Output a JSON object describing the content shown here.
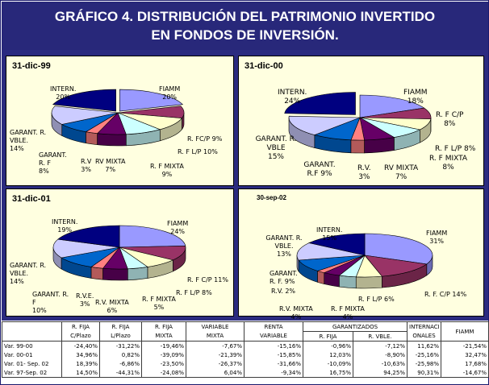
{
  "title": {
    "line1": "GRÁFICO 4. DISTRIBUCIÓN DEL PATRIMONIO INVERTIDO",
    "line2": "EN FONDOS DE INVERSIÓN."
  },
  "colors": {
    "FIAMM": "#9999ff",
    "R. F C/P": "#993366",
    "R. F L/P": "#ffffcc",
    "R. F MIXTA": "#ccffff",
    "RV MIXTA": "#660066",
    "R.V.": "#ff8080",
    "GARANT. R.F": "#0066cc",
    "GARANT. R. VBLE.": "#ccccff",
    "INTERN.": "#000080"
  },
  "chart_data": [
    {
      "type": "pie",
      "title": "31-dic-99",
      "categories": [
        "FIAMM",
        "R. FC/P",
        "R. F L/P",
        "R. F MIXTA",
        "RV MIXTA",
        "R.V",
        "GARANT. R. F",
        "GARANT. R. VBLE.",
        "INTERN."
      ],
      "values": [
        20,
        9,
        10,
        9,
        7,
        3,
        8,
        14,
        20
      ],
      "labels": [
        {
          "name": "FIAMM",
          "pct": "20%"
        },
        {
          "name": "R. FC/P 9%"
        },
        {
          "name": "R. F L/P 10%"
        },
        {
          "name": "R. F MIXTA",
          "pct": "9%"
        },
        {
          "name": "RV MIXTA",
          "pct": "7%"
        },
        {
          "name": "R.V",
          "pct": "3%"
        },
        {
          "name": "GARANT. R. F",
          "pct": "8%"
        },
        {
          "name": "GARANT. R. VBLE.",
          "pct": "14%"
        },
        {
          "name": "INTERN.",
          "pct": "20%"
        }
      ]
    },
    {
      "type": "pie",
      "title": "31-dic-00",
      "categories": [
        "FIAMM",
        "R. F C/P",
        "R. F L/P",
        "R. F MIXTA",
        "RV MIXTA",
        "R.V.",
        "GARANT. R.F",
        "GARANT. R. VBLE",
        "INTERN."
      ],
      "values": [
        18,
        8,
        8,
        8,
        7,
        3,
        9,
        15,
        24
      ],
      "labels": [
        {
          "name": "FIAMM",
          "pct": "18%"
        },
        {
          "name": "R. F C/P",
          "pct": "8%"
        },
        {
          "name": "R. F L/P 8%"
        },
        {
          "name": "R. F MIXTA",
          "pct": "8%"
        },
        {
          "name": "RV MIXTA",
          "pct": "7%"
        },
        {
          "name": "R.V.",
          "pct": "3%"
        },
        {
          "name": "GARANT. R.F 9%"
        },
        {
          "name": "GARANT. R. VBLE",
          "pct": "15%"
        },
        {
          "name": "INTERN.",
          "pct": "24%"
        }
      ]
    },
    {
      "type": "pie",
      "title": "31-dic-01",
      "categories": [
        "FIAMM",
        "R. F C/P",
        "R. F L/P",
        "R. F MIXTA",
        "R.V. MIXTA",
        "R.V.E.",
        "GARANT. R. F",
        "GARANT. R. VBLE.",
        "INTERN."
      ],
      "values": [
        24,
        11,
        8,
        5,
        6,
        3,
        10,
        14,
        19
      ],
      "labels": [
        {
          "name": "FIAMM",
          "pct": "24%"
        },
        {
          "name": "R. F C/P 11%"
        },
        {
          "name": "R. F L/P 8%"
        },
        {
          "name": "R. F MIXTA",
          "pct": "5%"
        },
        {
          "name": "R.V. MIXTA",
          "pct": "6%"
        },
        {
          "name": "R.V.E.",
          "pct": "3%"
        },
        {
          "name": "GARANT. R. F",
          "pct": "10%"
        },
        {
          "name": "GARANT. R. VBLE.",
          "pct": "14%"
        },
        {
          "name": "INTERN.",
          "pct": "19%"
        }
      ]
    },
    {
      "type": "pie",
      "title": "30-sep-02",
      "categories": [
        "FIAMM",
        "R. F. C/P",
        "R. F L/P",
        "R. F MIXTA",
        "R.V. MIXTA",
        "R.V.",
        "GARANT. R. F.",
        "GARANT. R. VBLE.",
        "INTERN."
      ],
      "values": [
        31,
        14,
        6,
        4,
        4,
        2,
        9,
        13,
        15
      ],
      "labels": [
        {
          "name": "FIAMM",
          "pct": "31%"
        },
        {
          "name": "R. F. C/P 14%"
        },
        {
          "name": "R. F L/P 6%"
        },
        {
          "name": "R. F MIXTA",
          "pct": "4%"
        },
        {
          "name": "R.V. MIXTA",
          "pct": "4%"
        },
        {
          "name": "R.V. 2%"
        },
        {
          "name": "GARANT. R. F. 9%"
        },
        {
          "name": "GARANT. R. VBLE.",
          "pct": "13%"
        },
        {
          "name": "INTERN.",
          "pct": "15%"
        }
      ]
    }
  ],
  "table": {
    "header_top": [
      "R. FIJA",
      "R. FIJA",
      "R. FIJA",
      "VARIABLE",
      "RENTA",
      "GARANTIZADOS",
      "INTERNACI",
      "FIAMM"
    ],
    "header_bottom": [
      "C/Plazo",
      "L/Plazo",
      "MIXTA",
      "MIXTA",
      "VARIABLE",
      "R. FIJA",
      "R. VBLE.",
      "ONALES"
    ],
    "rows": [
      {
        "label": "Var. 99-00",
        "values": [
          "-24,40%",
          "-31,22%",
          "-19,46%",
          "-7,67%",
          "-15,16%",
          "-0,96%",
          "-7,12%",
          "11,62%",
          "-21,54%"
        ]
      },
      {
        "label": "Var. 00-01",
        "values": [
          "34,96%",
          "0,82%",
          "-39,09%",
          "-21,39%",
          "-15,85%",
          "12,03%",
          "-8,90%",
          "-25,16%",
          "32,47%"
        ]
      },
      {
        "label": "Var. 01- Sep. 02",
        "values": [
          "18,39%",
          "-6,86%",
          "-23,50%",
          "-26,37%",
          "-31,66%",
          "-10,09%",
          "-10,63%",
          "-25,98%",
          "17,68%"
        ]
      },
      {
        "label": "Var. 97-Sep. 02",
        "values": [
          "14,50%",
          "-44,31%",
          "-24,08%",
          "6,04%",
          "-9,34%",
          "16,75%",
          "94,25%",
          "90,31%",
          "-14,67%"
        ]
      }
    ]
  }
}
